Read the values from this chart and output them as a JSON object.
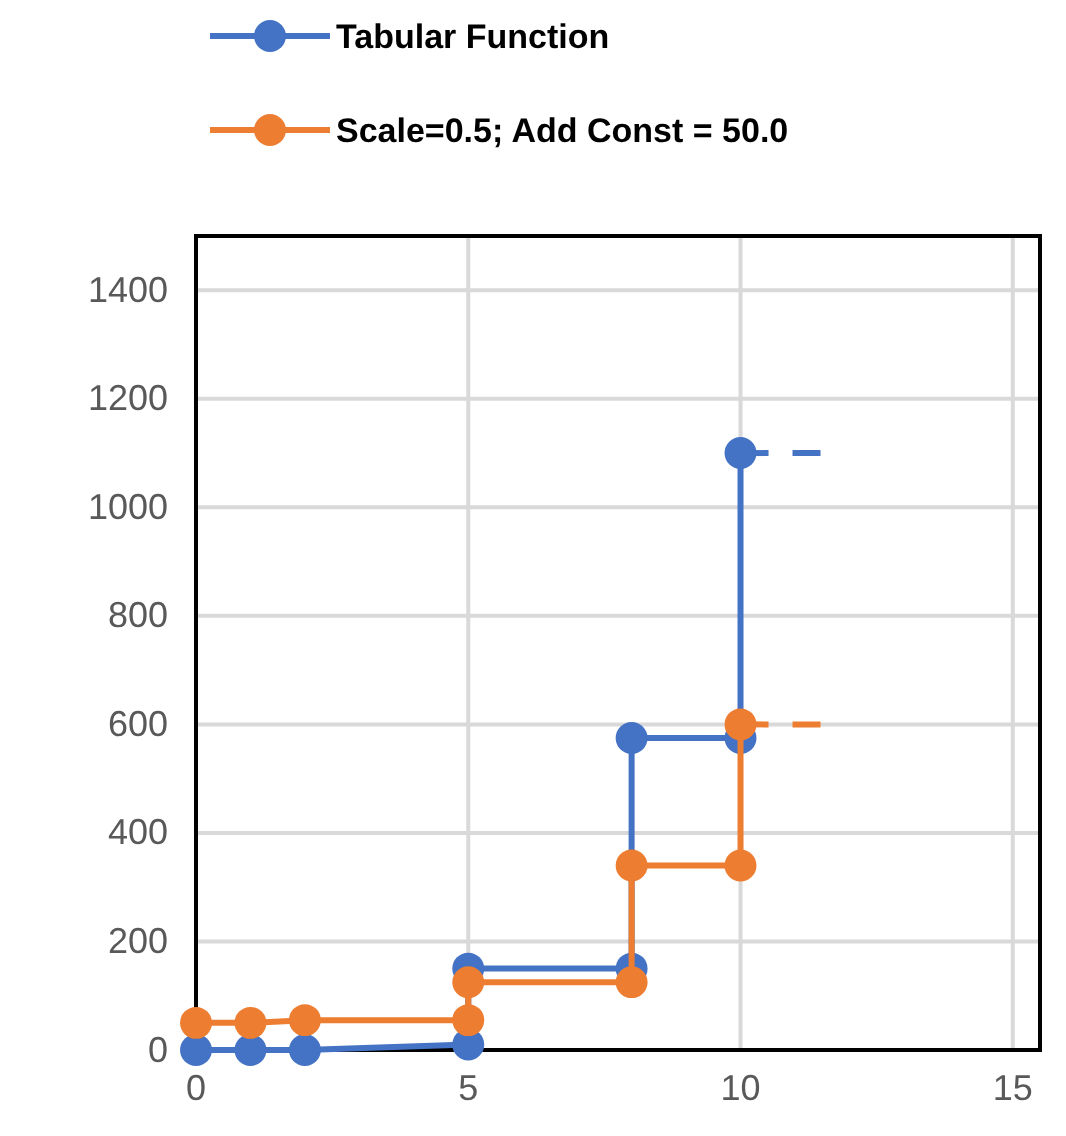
{
  "chart_data": {
    "type": "line",
    "xlim": [
      0,
      15.5
    ],
    "xticks": [
      0,
      5,
      10,
      15
    ],
    "ylim": [
      0,
      1500
    ],
    "yticks": [
      0,
      200,
      400,
      600,
      800,
      1000,
      1200,
      1400
    ],
    "grid": true,
    "legend": "top",
    "marker": "circle",
    "series": [
      {
        "name": "Tabular Function",
        "color": "#4472c4",
        "x": [
          0,
          1,
          2,
          5,
          5,
          8,
          8,
          10,
          10
        ],
        "values": [
          0,
          0,
          0,
          10,
          150,
          150,
          575,
          575,
          1100
        ]
      },
      {
        "name": "Scale=0.5; Add Const = 50.0",
        "color": "#ed7d31",
        "x": [
          0,
          1,
          2,
          5,
          5,
          8,
          8,
          10,
          10
        ],
        "values": [
          50,
          50,
          55,
          55,
          125,
          125,
          340,
          340,
          600
        ]
      },
      {
        "color": "#4472c4",
        "x": [
          10,
          11.5
        ],
        "values": [
          1100,
          1100
        ],
        "marker": "none",
        "line_style": "dashed"
      },
      {
        "color": "#ed7d31",
        "x": [
          10,
          11.5
        ],
        "values": [
          600,
          600
        ],
        "marker": "none",
        "line_style": "dashed"
      }
    ]
  }
}
